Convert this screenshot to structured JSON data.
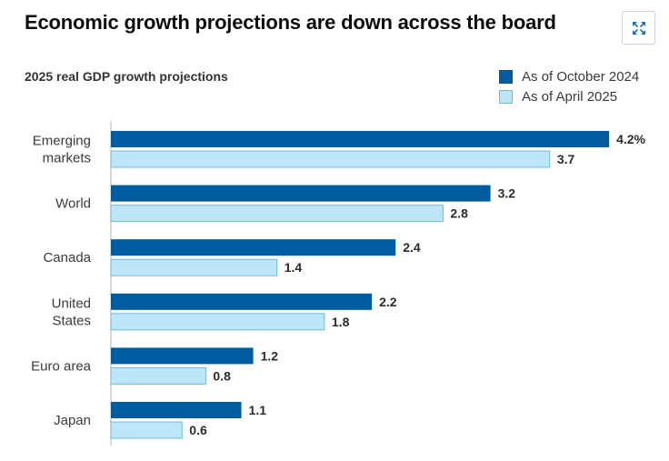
{
  "header": {
    "title": "Economic growth projections are down across the board",
    "expand_icon": "expand-arrows-icon"
  },
  "chart_data": {
    "type": "bar",
    "orientation": "horizontal",
    "title": "2025 real GDP growth projections",
    "categories": [
      [
        "Emerging",
        "markets"
      ],
      [
        "World"
      ],
      [
        "Canada"
      ],
      [
        "United",
        "States"
      ],
      [
        "Euro area"
      ],
      [
        "Japan"
      ]
    ],
    "series": [
      {
        "name": "As of October 2024",
        "color": "#005c9e",
        "values": [
          4.2,
          3.2,
          2.4,
          2.2,
          1.2,
          1.1
        ],
        "labels": [
          "4.2%",
          "3.2",
          "2.4",
          "2.2",
          "1.2",
          "1.1"
        ]
      },
      {
        "name": "As of April 2025",
        "color": "#bde6f8",
        "values": [
          3.7,
          2.8,
          1.4,
          1.8,
          0.8,
          0.6
        ],
        "labels": [
          "3.7",
          "2.8",
          "1.4",
          "1.8",
          "0.8",
          "0.6"
        ]
      }
    ],
    "xlim": [
      0,
      4.2
    ],
    "grid": false,
    "legend_position": "top-right"
  }
}
